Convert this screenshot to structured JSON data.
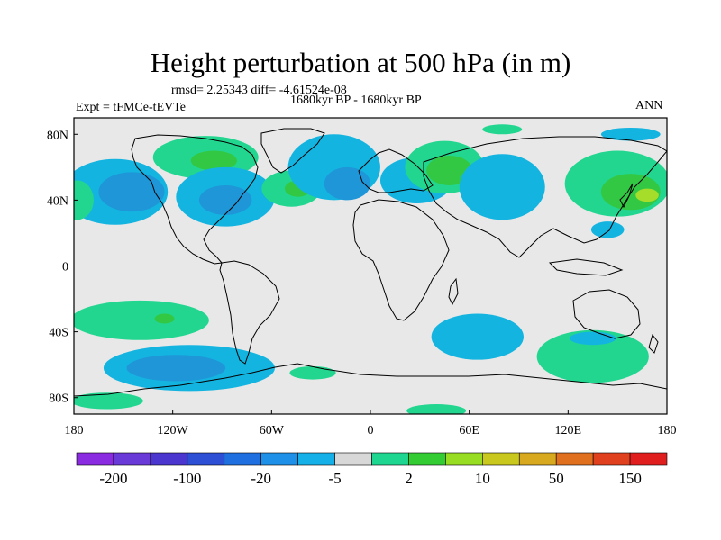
{
  "title": "Height perturbation at 500 hPa (in m)",
  "stats": "rmsd= 2.25343 diff= -4.61524e-08",
  "expt": "Expt = tFMCe-tEVTe",
  "period": "1680kyr BP - 1680kyr BP",
  "season": "ANN",
  "chart_data": {
    "type": "heatmap",
    "projection": "cylindrical-equidistant",
    "xlim": [
      -180,
      180
    ],
    "ylim": [
      -90,
      90
    ],
    "x_tick_labels": [
      "180",
      "120W",
      "60W",
      "0",
      "60E",
      "120E",
      "180"
    ],
    "x_tick_values": [
      -180,
      -120,
      -60,
      0,
      60,
      120,
      180
    ],
    "y_tick_labels": [
      "80N",
      "40N",
      "0",
      "40S",
      "80S"
    ],
    "y_tick_values": [
      80,
      40,
      0,
      -40,
      -80
    ],
    "colorbar": {
      "colors": [
        "#8a2be2",
        "#6a3ad8",
        "#4b36cf",
        "#2c4fd6",
        "#1f6fe0",
        "#1e90e8",
        "#16b0e8",
        "#d8d8d8",
        "#1fd690",
        "#33cc33",
        "#99dd22",
        "#c8c81e",
        "#d8a81e",
        "#e0701e",
        "#e0401e",
        "#e01e1e"
      ],
      "labels": [
        "-200",
        "-100",
        "-20",
        "-5",
        "2",
        "10",
        "50",
        "150"
      ]
    },
    "field_colors": {
      "background": "#e8e8e8",
      "neg_light": "#14b4e0",
      "neg_mid": "#1e96d8",
      "pos_light": "#22d690",
      "pos_mid": "#33c844",
      "pos_strong": "#a6dc2a"
    },
    "anomalies": [
      {
        "lon": -155,
        "lat": 45,
        "rlon": 32,
        "rlat": 20,
        "level": "neg_light"
      },
      {
        "lon": -145,
        "lat": 45,
        "rlon": 20,
        "rlat": 12,
        "level": "neg_mid"
      },
      {
        "lon": -100,
        "lat": 66,
        "rlon": 32,
        "rlat": 13,
        "level": "pos_light"
      },
      {
        "lon": -95,
        "lat": 64,
        "rlon": 14,
        "rlat": 6,
        "level": "pos_mid"
      },
      {
        "lon": -88,
        "lat": 42,
        "rlon": 30,
        "rlat": 18,
        "level": "neg_light"
      },
      {
        "lon": -88,
        "lat": 40,
        "rlon": 16,
        "rlat": 9,
        "level": "neg_mid"
      },
      {
        "lon": -48,
        "lat": 47,
        "rlon": 18,
        "rlat": 11,
        "level": "pos_light"
      },
      {
        "lon": -44,
        "lat": 47,
        "rlon": 8,
        "rlat": 5,
        "level": "pos_mid"
      },
      {
        "lon": -22,
        "lat": 60,
        "rlon": 28,
        "rlat": 20,
        "level": "neg_light"
      },
      {
        "lon": -14,
        "lat": 50,
        "rlon": 14,
        "rlat": 10,
        "level": "neg_mid"
      },
      {
        "lon": 28,
        "lat": 52,
        "rlon": 22,
        "rlat": 14,
        "level": "neg_light"
      },
      {
        "lon": 45,
        "lat": 60,
        "rlon": 24,
        "rlat": 16,
        "level": "pos_light"
      },
      {
        "lon": 48,
        "lat": 58,
        "rlon": 14,
        "rlat": 9,
        "level": "pos_mid"
      },
      {
        "lon": 80,
        "lat": 48,
        "rlon": 26,
        "rlat": 20,
        "level": "neg_light"
      },
      {
        "lon": 150,
        "lat": 50,
        "rlon": 32,
        "rlat": 20,
        "level": "pos_light"
      },
      {
        "lon": 158,
        "lat": 45,
        "rlon": 18,
        "rlat": 11,
        "level": "pos_mid"
      },
      {
        "lon": 168,
        "lat": 43,
        "rlon": 7,
        "rlat": 4,
        "level": "pos_strong"
      },
      {
        "lon": 144,
        "lat": 22,
        "rlon": 10,
        "rlat": 5,
        "level": "neg_light"
      },
      {
        "lon": 158,
        "lat": 80,
        "rlon": 18,
        "rlat": 4,
        "level": "neg_light"
      },
      {
        "lon": 80,
        "lat": 83,
        "rlon": 12,
        "rlat": 3,
        "level": "pos_light"
      },
      {
        "lon": -178,
        "lat": 40,
        "rlon": 10,
        "rlat": 12,
        "level": "pos_light"
      },
      {
        "lon": -140,
        "lat": -33,
        "rlon": 42,
        "rlat": 12,
        "level": "pos_light"
      },
      {
        "lon": -125,
        "lat": -32,
        "rlon": 6,
        "rlat": 3,
        "level": "pos_mid"
      },
      {
        "lon": -110,
        "lat": -62,
        "rlon": 52,
        "rlat": 14,
        "level": "neg_light"
      },
      {
        "lon": -118,
        "lat": -62,
        "rlon": 30,
        "rlat": 8,
        "level": "neg_mid"
      },
      {
        "lon": -160,
        "lat": -82,
        "rlon": 22,
        "rlat": 5,
        "level": "pos_light"
      },
      {
        "lon": -35,
        "lat": -65,
        "rlon": 14,
        "rlat": 4,
        "level": "pos_light"
      },
      {
        "lon": 65,
        "lat": -43,
        "rlon": 28,
        "rlat": 14,
        "level": "neg_light"
      },
      {
        "lon": 135,
        "lat": -55,
        "rlon": 34,
        "rlat": 16,
        "level": "pos_light"
      },
      {
        "lon": 135,
        "lat": -44,
        "rlon": 14,
        "rlat": 4,
        "level": "neg_light"
      },
      {
        "lon": 40,
        "lat": -88,
        "rlon": 18,
        "rlat": 4,
        "level": "pos_light"
      }
    ]
  }
}
